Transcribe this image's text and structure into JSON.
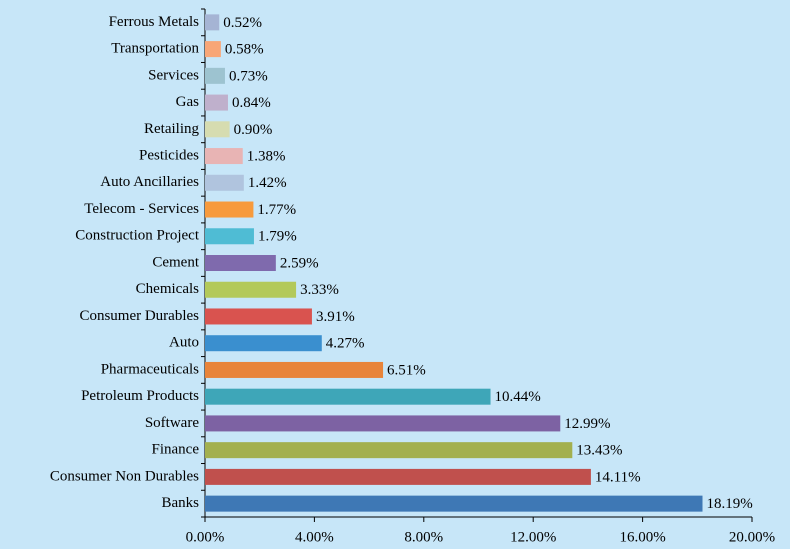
{
  "chart_data": {
    "type": "bar",
    "orientation": "horizontal",
    "categories": [
      "Ferrous Metals",
      "Transportation",
      "Services",
      "Gas",
      "Retailing",
      "Pesticides",
      "Auto Ancillaries",
      "Telecom - Services",
      "Construction Project",
      "Cement",
      "Chemicals",
      "Consumer Durables",
      "Auto",
      "Pharmaceuticals",
      "Petroleum Products",
      "Software",
      "Finance",
      "Consumer Non Durables",
      "Banks"
    ],
    "values": [
      0.52,
      0.58,
      0.73,
      0.84,
      0.9,
      1.38,
      1.42,
      1.77,
      1.79,
      2.59,
      3.33,
      3.91,
      4.27,
      6.51,
      10.44,
      12.99,
      13.43,
      14.11,
      18.19
    ],
    "value_labels": [
      "0.52%",
      "0.58%",
      "0.73%",
      "0.84%",
      "0.90%",
      "1.38%",
      "1.42%",
      "1.77%",
      "1.79%",
      "2.59%",
      "3.33%",
      "3.91%",
      "4.27%",
      "6.51%",
      "10.44%",
      "12.99%",
      "13.43%",
      "14.11%",
      "18.19%"
    ],
    "colors": [
      "#a5b4d4",
      "#f8a677",
      "#9dc3d0",
      "#bfb0cc",
      "#d6dcb0",
      "#e8b4b4",
      "#b0c4de",
      "#f79a3c",
      "#4fbcd4",
      "#7f6aad",
      "#b3c95a",
      "#d9534f",
      "#3a8fcf",
      "#e8843a",
      "#3ea6b8",
      "#7d62a3",
      "#a3b04f",
      "#c0504d",
      "#3e78b5"
    ],
    "xlim": [
      0,
      20
    ],
    "xticks": [
      {
        "value": 0,
        "label": "0.00%"
      },
      {
        "value": 4,
        "label": "4.00%"
      },
      {
        "value": 8,
        "label": "8.00%"
      },
      {
        "value": 12,
        "label": "12.00%"
      },
      {
        "value": 16,
        "label": "16.00%"
      },
      {
        "value": 20,
        "label": "20.00%"
      }
    ]
  }
}
